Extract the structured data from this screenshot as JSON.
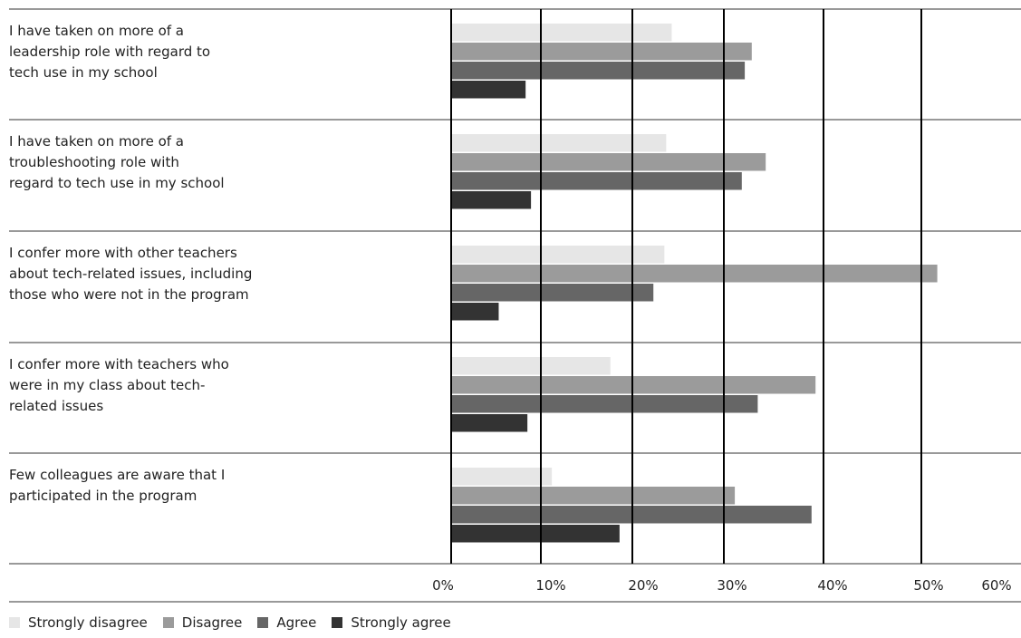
{
  "chart_data": {
    "type": "bar",
    "orientation": "horizontal",
    "categories": [
      "I have taken on more of a leadership role with regard to tech use in my school",
      "I have taken on more of a troubleshooting role with regard to tech use in my school",
      "I confer more with other teachers about tech-related issues, including those who were not in the program",
      "I confer more with teachers who were in my class about tech-related issues",
      "Few colleagues are aware that I participated in the program"
    ],
    "category_lines": [
      [
        "I have taken on more of a",
        "leadership role with regard to",
        "tech use in my school"
      ],
      [
        "I have taken on more of a",
        "troubleshooting role with",
        "regard to tech use in my school"
      ],
      [
        "I confer more with other teachers",
        "about tech-related issues, including",
        "those who were not in the program"
      ],
      [
        "I confer more with teachers who",
        "were in my class about tech-",
        "related issues"
      ],
      [
        "Few colleagues are aware that I",
        "participated in the program"
      ]
    ],
    "series": [
      {
        "name": "Strongly disagree",
        "color": "#e6e6e6",
        "values": [
          24.3,
          23.7,
          23.5,
          17.6,
          11.2
        ]
      },
      {
        "name": "Disagree",
        "color": "#9b9b9b",
        "values": [
          32.8,
          34.2,
          51.6,
          39.2,
          31.1
        ]
      },
      {
        "name": "Agree",
        "color": "#666666",
        "values": [
          32.1,
          31.8,
          22.3,
          33.4,
          38.8
        ]
      },
      {
        "name": "Strongly agree",
        "color": "#333333",
        "values": [
          8.3,
          8.9,
          5.3,
          8.5,
          18.6
        ]
      }
    ],
    "x_ticks": [
      "0%",
      "10%",
      "20%",
      "30%",
      "40%",
      "50%",
      "60%"
    ],
    "xlim": [
      0,
      60
    ],
    "grid": "vertical",
    "legend_position": "bottom-left"
  }
}
